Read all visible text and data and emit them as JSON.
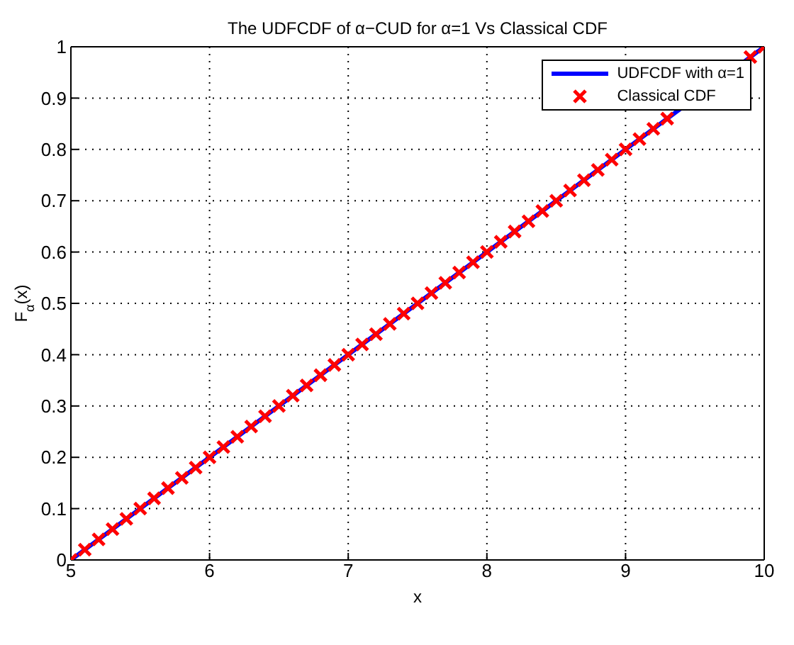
{
  "chart_data": {
    "type": "line",
    "title": "The UDFCDF of α−CUD for α=1 Vs Classical CDF",
    "xlabel": "x",
    "ylabel": "F$_{α}$(x)",
    "xlim": [
      5,
      10
    ],
    "ylim": [
      0,
      1
    ],
    "xticks": [
      5,
      6,
      7,
      8,
      9,
      10
    ],
    "yticks": [
      0,
      0.1,
      0.2,
      0.3,
      0.4,
      0.5,
      0.6,
      0.7,
      0.8,
      0.9,
      1
    ],
    "grid": true,
    "legend": "top right",
    "series": [
      {
        "name": "UDFCDF with α=1",
        "color": "#0000ff",
        "marker": "none",
        "line_style": "solid",
        "x": [
          5,
          10
        ],
        "values": [
          0,
          1
        ]
      },
      {
        "name": "Classical CDF",
        "type": "scatter",
        "color": "#ff0000",
        "marker": "cross",
        "x": [
          5,
          5.1,
          5.2,
          5.3,
          5.4,
          5.5,
          5.6,
          5.7,
          5.8,
          5.9,
          6,
          6.1,
          6.2,
          6.3,
          6.4,
          6.5,
          6.6,
          6.7,
          6.8,
          6.9,
          7,
          7.1,
          7.2,
          7.3,
          7.4,
          7.5,
          7.6,
          7.7,
          7.8,
          7.9,
          8,
          8.1,
          8.2,
          8.3,
          8.4,
          8.5,
          8.6,
          8.7,
          8.8,
          8.9,
          9,
          9.1,
          9.2,
          9.3,
          9.4,
          9.5,
          9.6,
          9.7,
          9.8,
          9.9,
          10
        ],
        "values": [
          0,
          0.02,
          0.04,
          0.06,
          0.08,
          0.1,
          0.12,
          0.14,
          0.16,
          0.18,
          0.2,
          0.22,
          0.24,
          0.26,
          0.28,
          0.3,
          0.32,
          0.34,
          0.36,
          0.38,
          0.4,
          0.42,
          0.44,
          0.46,
          0.48,
          0.5,
          0.52,
          0.54,
          0.56,
          0.58,
          0.6,
          0.62,
          0.64,
          0.66,
          0.68,
          0.7,
          0.72,
          0.74,
          0.76,
          0.78,
          0.8,
          0.82,
          0.84,
          0.86,
          null,
          null,
          null,
          null,
          null,
          0.98,
          1
        ]
      }
    ]
  }
}
